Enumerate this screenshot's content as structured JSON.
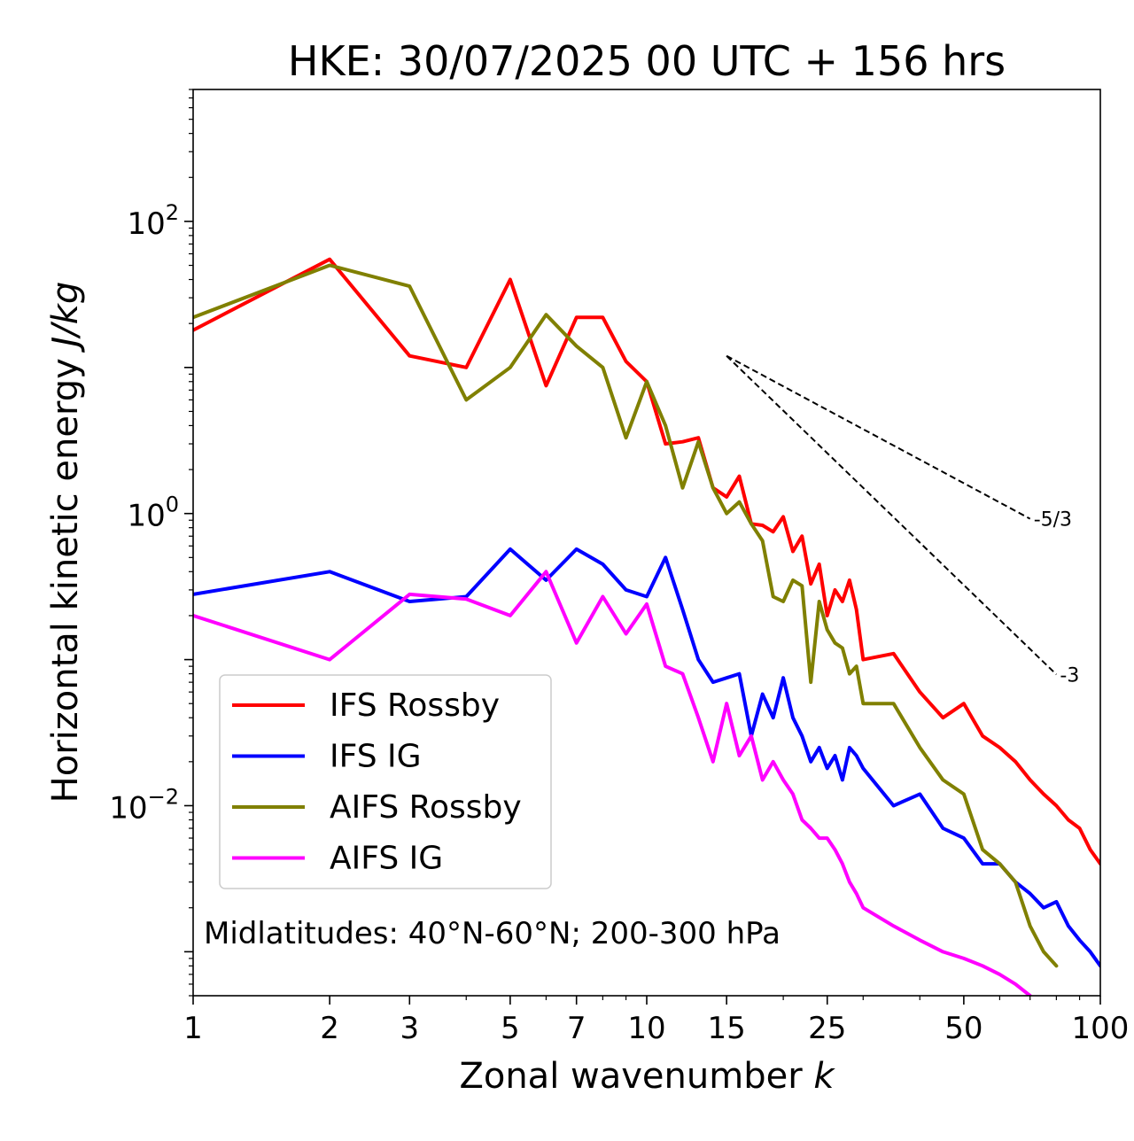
{
  "chart_data": {
    "type": "line",
    "title": "HKE: 30/07/2025 00 UTC + 156 hrs",
    "xlabel": "Zonal wavenumber",
    "xlabel_var": "k",
    "ylabel": "Horizontal kinetic energy",
    "ylabel_unit": "J/kg",
    "xscale": "log",
    "yscale": "log",
    "xlim": [
      1,
      100
    ],
    "ylim": [
      0.0005,
      800
    ],
    "xticks": [
      1,
      2,
      3,
      5,
      7,
      10,
      15,
      25,
      50,
      100
    ],
    "xtick_labels": [
      "1",
      "2",
      "3",
      "5",
      "7",
      "10",
      "15",
      "25",
      "50",
      "100"
    ],
    "yticks": [
      0.01,
      1,
      100
    ],
    "ytick_labels": [
      {
        "base": "10",
        "exp": "−2"
      },
      {
        "base": "10",
        "exp": "0"
      },
      {
        "base": "10",
        "exp": "2"
      }
    ],
    "annotation": "Midlatitudes: 40°N-60°N; 200-300 hPa",
    "legend_position": "lower-left",
    "reference_slopes": [
      {
        "label": "-5/3",
        "slope": -1.6667,
        "x": [
          15,
          70
        ],
        "y0": 12
      },
      {
        "label": "-3",
        "slope": -3,
        "x": [
          15,
          80
        ],
        "y0": 12
      }
    ],
    "series": [
      {
        "name": "IFS Rossby",
        "color": "#ff0000",
        "x": [
          1,
          2,
          3,
          4,
          5,
          6,
          7,
          8,
          9,
          10,
          11,
          12,
          13,
          14,
          15,
          16,
          17,
          18,
          19,
          20,
          21,
          22,
          23,
          24,
          25,
          26,
          27,
          28,
          29,
          30,
          35,
          40,
          45,
          50,
          55,
          60,
          65,
          70,
          75,
          80,
          85,
          90,
          95,
          100
        ],
        "values": [
          18,
          55,
          12,
          10,
          40,
          7.5,
          22,
          22,
          11,
          8,
          3.0,
          3.1,
          3.3,
          1.5,
          1.3,
          1.8,
          0.85,
          0.83,
          0.75,
          0.95,
          0.55,
          0.7,
          0.33,
          0.45,
          0.2,
          0.3,
          0.25,
          0.35,
          0.22,
          0.1,
          0.11,
          0.06,
          0.04,
          0.05,
          0.03,
          0.025,
          0.02,
          0.015,
          0.012,
          0.01,
          0.008,
          0.007,
          0.005,
          0.004
        ]
      },
      {
        "name": "IFS IG",
        "color": "#0000ff",
        "x": [
          1,
          2,
          3,
          4,
          5,
          6,
          7,
          8,
          9,
          10,
          11,
          12,
          13,
          14,
          15,
          16,
          17,
          18,
          19,
          20,
          21,
          22,
          23,
          24,
          25,
          26,
          27,
          28,
          29,
          30,
          35,
          40,
          45,
          50,
          55,
          60,
          65,
          70,
          75,
          80,
          85,
          90,
          95,
          100
        ],
        "values": [
          0.28,
          0.4,
          0.25,
          0.27,
          0.57,
          0.35,
          0.57,
          0.45,
          0.3,
          0.27,
          0.5,
          0.22,
          0.1,
          0.07,
          0.075,
          0.08,
          0.03,
          0.058,
          0.04,
          0.075,
          0.04,
          0.03,
          0.02,
          0.025,
          0.018,
          0.022,
          0.015,
          0.025,
          0.022,
          0.018,
          0.01,
          0.012,
          0.007,
          0.006,
          0.004,
          0.004,
          0.003,
          0.0025,
          0.002,
          0.0022,
          0.0015,
          0.0012,
          0.001,
          0.0008
        ]
      },
      {
        "name": "AIFS Rossby",
        "color": "#808000",
        "x": [
          1,
          2,
          3,
          4,
          5,
          6,
          7,
          8,
          9,
          10,
          11,
          12,
          13,
          14,
          15,
          16,
          17,
          18,
          19,
          20,
          21,
          22,
          23,
          24,
          25,
          26,
          27,
          28,
          29,
          30,
          35,
          40,
          45,
          50,
          55,
          60,
          65,
          70,
          75,
          80
        ],
        "values": [
          22,
          50,
          36,
          6,
          10,
          23,
          14,
          10,
          3.3,
          8,
          4,
          1.5,
          3.1,
          1.5,
          1.0,
          1.2,
          0.85,
          0.65,
          0.27,
          0.25,
          0.35,
          0.32,
          0.07,
          0.25,
          0.16,
          0.13,
          0.12,
          0.08,
          0.09,
          0.05,
          0.05,
          0.025,
          0.015,
          0.012,
          0.005,
          0.004,
          0.003,
          0.0015,
          0.001,
          0.0008
        ]
      },
      {
        "name": "AIFS IG",
        "color": "#ff00ff",
        "x": [
          1,
          2,
          3,
          4,
          5,
          6,
          7,
          8,
          9,
          10,
          11,
          12,
          13,
          14,
          15,
          16,
          17,
          18,
          19,
          20,
          21,
          22,
          23,
          24,
          25,
          26,
          27,
          28,
          29,
          30,
          35,
          40,
          45,
          50,
          55,
          60,
          65,
          70
        ],
        "values": [
          0.2,
          0.1,
          0.28,
          0.26,
          0.2,
          0.4,
          0.13,
          0.27,
          0.15,
          0.24,
          0.09,
          0.08,
          0.04,
          0.02,
          0.05,
          0.022,
          0.03,
          0.015,
          0.02,
          0.015,
          0.012,
          0.008,
          0.007,
          0.006,
          0.006,
          0.005,
          0.004,
          0.003,
          0.0025,
          0.002,
          0.0015,
          0.0012,
          0.001,
          0.0009,
          0.0008,
          0.0007,
          0.0006,
          0.0005
        ]
      }
    ]
  }
}
